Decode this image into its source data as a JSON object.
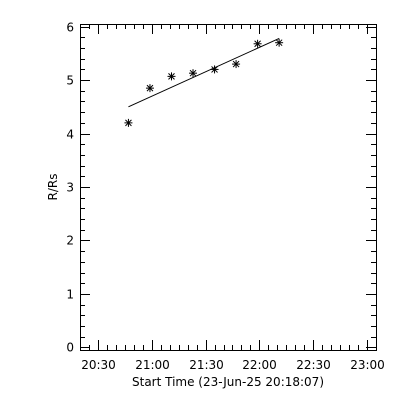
{
  "chart_data": {
    "type": "scatter",
    "title": "",
    "xlabel": "Start Time (23-Jun-25 20:18:07)",
    "ylabel": "R/Rs",
    "x_unit": "time",
    "xlim": [
      "20:20",
      "23:05"
    ],
    "ylim": [
      -0.05,
      6.05
    ],
    "x_ticks": [
      "20:30",
      "21:00",
      "21:30",
      "22:00",
      "22:30",
      "23:00"
    ],
    "y_ticks": [
      0,
      1,
      2,
      3,
      4,
      5,
      6
    ],
    "grid": false,
    "legend": "none",
    "series": [
      {
        "marker": "asterisk",
        "color": "#000000",
        "points": [
          {
            "x": "20:47",
            "y": 4.2
          },
          {
            "x": "20:59",
            "y": 4.85
          },
          {
            "x": "21:11",
            "y": 5.07
          },
          {
            "x": "21:23",
            "y": 5.13
          },
          {
            "x": "21:35",
            "y": 5.2
          },
          {
            "x": "21:47",
            "y": 5.3
          },
          {
            "x": "21:59",
            "y": 5.68
          },
          {
            "x": "22:11",
            "y": 5.7
          }
        ]
      }
    ],
    "fit_line": {
      "style": "solid",
      "color": "#000000",
      "points": [
        {
          "x": "20:47",
          "y": 4.5
        },
        {
          "x": "22:11",
          "y": 5.78
        }
      ]
    }
  }
}
